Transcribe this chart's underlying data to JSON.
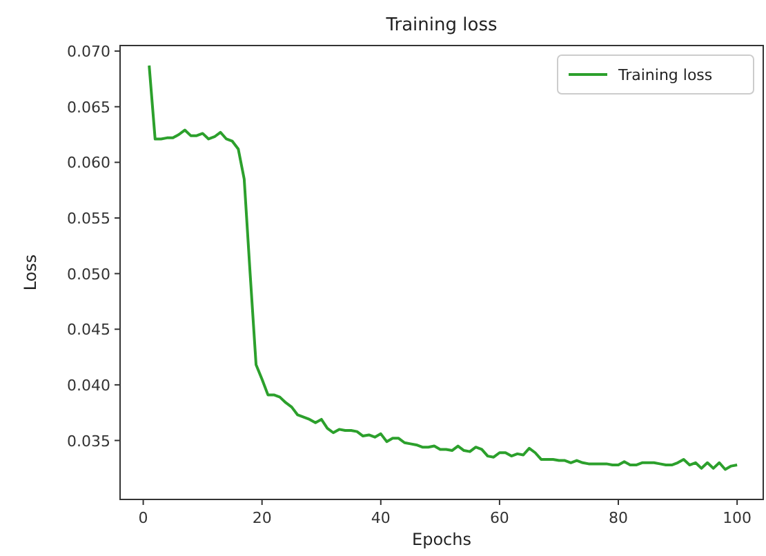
{
  "chart_data": {
    "type": "line",
    "title": "Training loss",
    "xlabel": "Epochs",
    "ylabel": "Loss",
    "x": [
      1,
      2,
      3,
      4,
      5,
      6,
      7,
      8,
      9,
      10,
      11,
      12,
      13,
      14,
      15,
      16,
      17,
      18,
      19,
      20,
      21,
      22,
      23,
      24,
      25,
      26,
      27,
      28,
      29,
      30,
      31,
      32,
      33,
      34,
      35,
      36,
      37,
      38,
      39,
      40,
      41,
      42,
      43,
      44,
      45,
      46,
      47,
      48,
      49,
      50,
      51,
      52,
      53,
      54,
      55,
      56,
      57,
      58,
      59,
      60,
      61,
      62,
      63,
      64,
      65,
      66,
      67,
      68,
      69,
      70,
      71,
      72,
      73,
      74,
      75,
      76,
      77,
      78,
      79,
      80,
      81,
      82,
      83,
      84,
      85,
      86,
      87,
      88,
      89,
      90,
      91,
      92,
      93,
      94,
      95,
      96,
      97,
      98,
      99,
      100
    ],
    "series": [
      {
        "name": "Training loss",
        "color": "#2ca02c",
        "values": [
          0.0687,
          0.0621,
          0.0621,
          0.0622,
          0.0622,
          0.0625,
          0.0629,
          0.0624,
          0.0624,
          0.0626,
          0.0621,
          0.0623,
          0.0627,
          0.0621,
          0.0619,
          0.0612,
          0.0585,
          0.05,
          0.0418,
          0.0405,
          0.0391,
          0.0391,
          0.0389,
          0.0384,
          0.038,
          0.0373,
          0.0371,
          0.0369,
          0.0366,
          0.0369,
          0.0361,
          0.0357,
          0.036,
          0.0359,
          0.0359,
          0.0358,
          0.0354,
          0.0355,
          0.0353,
          0.0356,
          0.0349,
          0.0352,
          0.0352,
          0.0348,
          0.0347,
          0.0346,
          0.0344,
          0.0344,
          0.0345,
          0.0342,
          0.0342,
          0.0341,
          0.0345,
          0.0341,
          0.034,
          0.0344,
          0.0342,
          0.0336,
          0.0335,
          0.0339,
          0.0339,
          0.0336,
          0.0338,
          0.0337,
          0.0343,
          0.0339,
          0.0333,
          0.0333,
          0.0333,
          0.0332,
          0.0332,
          0.033,
          0.0332,
          0.033,
          0.0329,
          0.0329,
          0.0329,
          0.0329,
          0.0328,
          0.0328,
          0.0331,
          0.0328,
          0.0328,
          0.033,
          0.033,
          0.033,
          0.0329,
          0.0328,
          0.0328,
          0.033,
          0.0333,
          0.0328,
          0.033,
          0.0325,
          0.033,
          0.0325,
          0.033,
          0.0324,
          0.0327,
          0.0328
        ]
      }
    ],
    "xlim": [
      -3.9,
      104.4
    ],
    "ylim": [
      0.0297,
      0.0705
    ],
    "xticks": [
      0,
      20,
      40,
      60,
      80,
      100
    ],
    "yticks": [
      {
        "value": 0.035,
        "label": "0.035"
      },
      {
        "value": 0.04,
        "label": "0.040"
      },
      {
        "value": 0.045,
        "label": "0.045"
      },
      {
        "value": 0.05,
        "label": "0.050"
      },
      {
        "value": 0.055,
        "label": "0.055"
      },
      {
        "value": 0.06,
        "label": "0.060"
      },
      {
        "value": 0.065,
        "label": "0.065"
      },
      {
        "value": 0.07,
        "label": "0.070"
      }
    ],
    "legend": "top right",
    "grid": false,
    "marker": "none",
    "line_style": "solid"
  }
}
